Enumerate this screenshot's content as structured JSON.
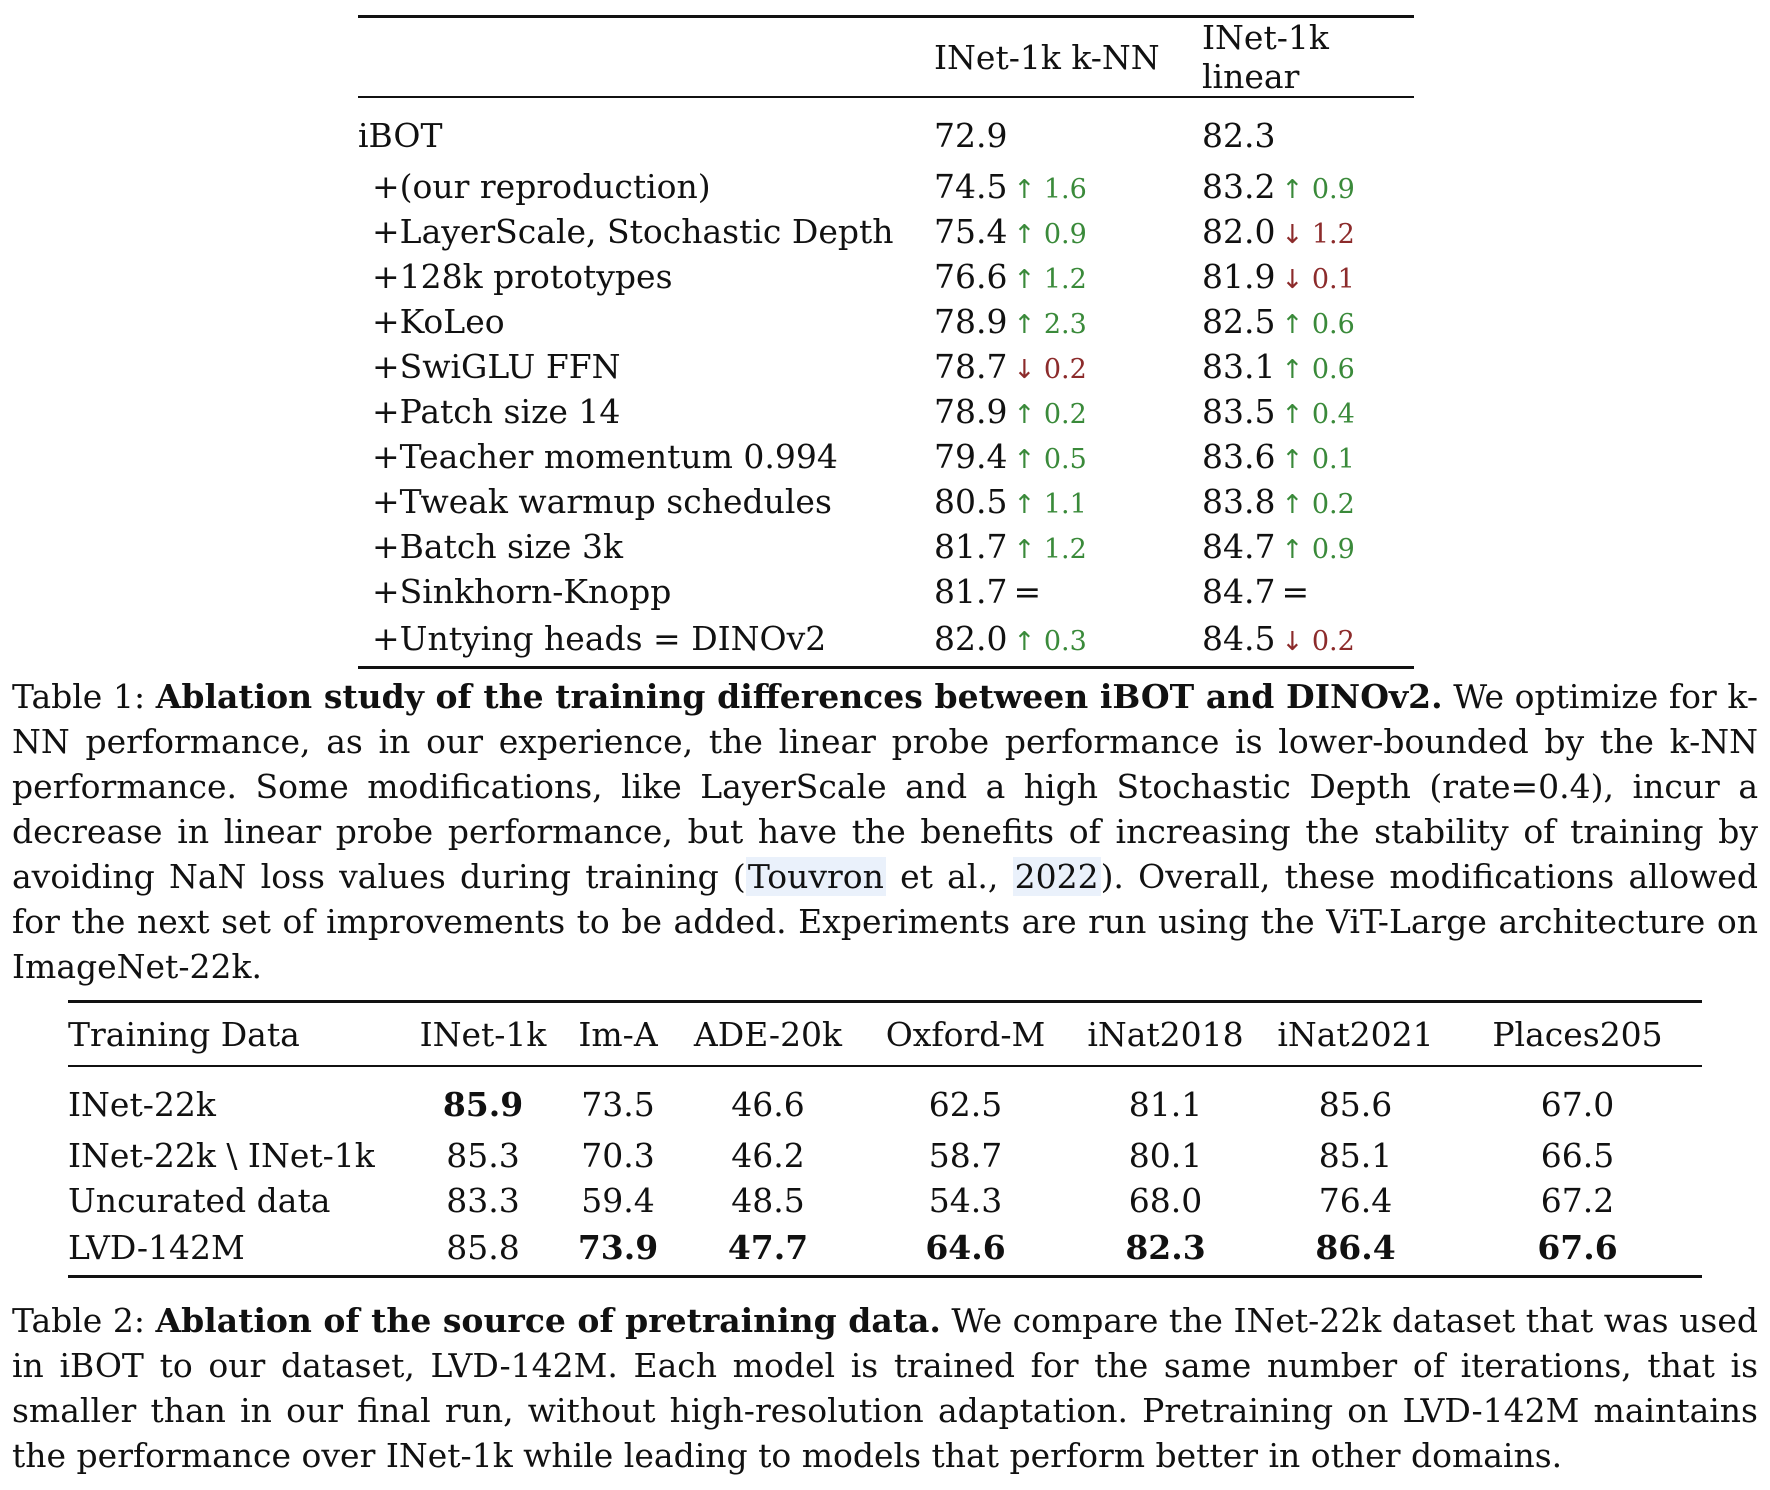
{
  "table1": {
    "headers": [
      "",
      "INet-1k k-NN",
      "INet-1k linear"
    ],
    "rows": [
      {
        "label": "iBOT",
        "indent": false,
        "knn": {
          "value": "72.9",
          "dir": "",
          "arrow": "",
          "delta": ""
        },
        "linear": {
          "value": "82.3",
          "dir": "",
          "arrow": "",
          "delta": ""
        }
      },
      {
        "label": "+(our reproduction)",
        "indent": true,
        "knn": {
          "value": "74.5",
          "dir": "up",
          "arrow": "↑",
          "delta": "1.6"
        },
        "linear": {
          "value": "83.2",
          "dir": "up",
          "arrow": "↑",
          "delta": "0.9"
        }
      },
      {
        "label": "+LayerScale, Stochastic Depth",
        "indent": true,
        "knn": {
          "value": "75.4",
          "dir": "up",
          "arrow": "↑",
          "delta": "0.9"
        },
        "linear": {
          "value": "82.0",
          "dir": "down",
          "arrow": "↓",
          "delta": "1.2"
        }
      },
      {
        "label": "+128k prototypes",
        "indent": true,
        "knn": {
          "value": "76.6",
          "dir": "up",
          "arrow": "↑",
          "delta": "1.2"
        },
        "linear": {
          "value": "81.9",
          "dir": "down",
          "arrow": "↓",
          "delta": "0.1"
        }
      },
      {
        "label": "+KoLeo",
        "indent": true,
        "knn": {
          "value": "78.9",
          "dir": "up",
          "arrow": "↑",
          "delta": "2.3"
        },
        "linear": {
          "value": "82.5",
          "dir": "up",
          "arrow": "↑",
          "delta": "0.6"
        }
      },
      {
        "label": "+SwiGLU FFN",
        "indent": true,
        "knn": {
          "value": "78.7",
          "dir": "down",
          "arrow": "↓",
          "delta": "0.2"
        },
        "linear": {
          "value": "83.1",
          "dir": "up",
          "arrow": "↑",
          "delta": "0.6"
        }
      },
      {
        "label": "+Patch size 14",
        "indent": true,
        "knn": {
          "value": "78.9",
          "dir": "up",
          "arrow": "↑",
          "delta": "0.2"
        },
        "linear": {
          "value": "83.5",
          "dir": "up",
          "arrow": "↑",
          "delta": "0.4"
        }
      },
      {
        "label": "+Teacher momentum 0.994",
        "indent": true,
        "knn": {
          "value": "79.4",
          "dir": "up",
          "arrow": "↑",
          "delta": "0.5"
        },
        "linear": {
          "value": "83.6",
          "dir": "up",
          "arrow": "↑",
          "delta": "0.1"
        }
      },
      {
        "label": "+Tweak warmup schedules",
        "indent": true,
        "knn": {
          "value": "80.5",
          "dir": "up",
          "arrow": "↑",
          "delta": "1.1"
        },
        "linear": {
          "value": "83.8",
          "dir": "up",
          "arrow": "↑",
          "delta": "0.2"
        }
      },
      {
        "label": "+Batch size 3k",
        "indent": true,
        "knn": {
          "value": "81.7",
          "dir": "up",
          "arrow": "↑",
          "delta": "1.2"
        },
        "linear": {
          "value": "84.7",
          "dir": "up",
          "arrow": "↑",
          "delta": "0.9"
        }
      },
      {
        "label": "+Sinkhorn-Knopp",
        "indent": true,
        "knn": {
          "value": "81.7",
          "dir": "eq",
          "arrow": "=",
          "delta": ""
        },
        "linear": {
          "value": "84.7",
          "dir": "eq",
          "arrow": "=",
          "delta": ""
        }
      },
      {
        "label": "+Untying heads = DINOv2",
        "indent": true,
        "knn": {
          "value": "82.0",
          "dir": "up",
          "arrow": "↑",
          "delta": "0.3"
        },
        "linear": {
          "value": "84.5",
          "dir": "down",
          "arrow": "↓",
          "delta": "0.2"
        }
      }
    ]
  },
  "caption1": {
    "prefix": "Table 1: ",
    "bold": "Ablation study of the training differences between iBOT and DINOv2.",
    "text_before_cite": " We optimize for k-NN performance, as in our experience, the linear probe performance is lower-bounded by the k-NN performance. Some modifications, like LayerScale and a high Stochastic Depth (rate=0.4), incur a decrease in linear probe performance, but have the benefits of increasing the stability of training by avoiding NaN loss values during training (",
    "cite_author": "Touvron",
    "cite_middle": " et al., ",
    "cite_year": "2022",
    "text_after_cite": "). Overall, these modifications allowed for the next set of improvements to be added. Experiments are run using the ViT-Large architecture on ImageNet-22k."
  },
  "table2": {
    "headers": [
      "Training Data",
      "INet-1k",
      "Im-A",
      "ADE-20k",
      "Oxford-M",
      "iNat2018",
      "iNat2021",
      "Places205"
    ],
    "rows": [
      {
        "cells": [
          "INet-22k",
          "85.9",
          "73.5",
          "46.6",
          "62.5",
          "81.1",
          "85.6",
          "67.0"
        ],
        "bold": [
          false,
          true,
          false,
          false,
          false,
          false,
          false,
          false
        ]
      },
      {
        "cells": [
          "INet-22k \\ INet-1k",
          "85.3",
          "70.3",
          "46.2",
          "58.7",
          "80.1",
          "85.1",
          "66.5"
        ],
        "bold": [
          false,
          false,
          false,
          false,
          false,
          false,
          false,
          false
        ]
      },
      {
        "cells": [
          "Uncurated data",
          "83.3",
          "59.4",
          "48.5",
          "54.3",
          "68.0",
          "76.4",
          "67.2"
        ],
        "bold": [
          false,
          false,
          false,
          false,
          false,
          false,
          false,
          false
        ]
      },
      {
        "cells": [
          "LVD-142M",
          "85.8",
          "73.9",
          "47.7",
          "64.6",
          "82.3",
          "86.4",
          "67.6"
        ],
        "bold": [
          false,
          false,
          true,
          true,
          true,
          true,
          true,
          true
        ]
      }
    ]
  },
  "caption2": {
    "prefix": "Table 2: ",
    "bold": "Ablation of the source of pretraining data.",
    "text": " We compare the INet-22k dataset that was used in iBOT to our dataset, LVD-142M. Each model is trained for the same number of iterations, that is smaller than in our final run, without high-resolution adaptation. Pretraining on LVD-142M maintains the performance over INet-1k while leading to models that perform better in other domains."
  }
}
